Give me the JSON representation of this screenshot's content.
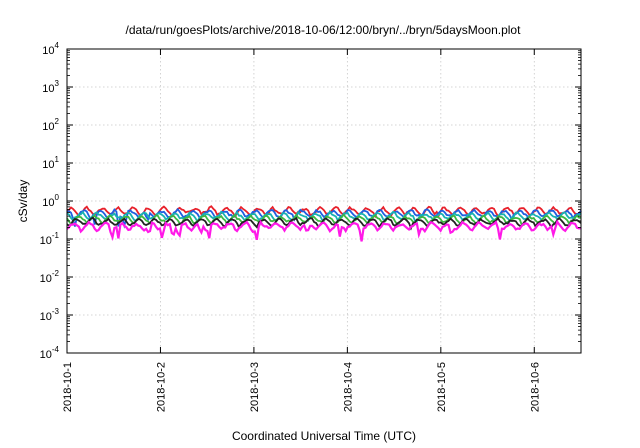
{
  "chart_data": {
    "type": "line",
    "title": "/data/run/goesPlots/archive/2018-10-06/12:00/bryn/../bryn/5daysMoon.plot",
    "xlabel": "Coordinated Universal Time (UTC)",
    "ylabel": "cSv/day",
    "yscale": "log",
    "ylim": [
      0.0001,
      10000
    ],
    "y_ticks": [
      {
        "value": 0.0001,
        "base": "10",
        "exp": "-4"
      },
      {
        "value": 0.001,
        "base": "10",
        "exp": "-3"
      },
      {
        "value": 0.01,
        "base": "10",
        "exp": "-2"
      },
      {
        "value": 0.1,
        "base": "10",
        "exp": "-1"
      },
      {
        "value": 1,
        "base": "10",
        "exp": "0"
      },
      {
        "value": 10,
        "base": "10",
        "exp": "1"
      },
      {
        "value": 100,
        "base": "10",
        "exp": "2"
      },
      {
        "value": 1000,
        "base": "10",
        "exp": "3"
      },
      {
        "value": 10000,
        "base": "10",
        "exp": "4"
      }
    ],
    "x_ticks": [
      "2018-10-1",
      "2018-10-2",
      "2018-10-3",
      "2018-10-4",
      "2018-10-5",
      "2018-10-6"
    ],
    "xlim": [
      "2018-10-01T00:00",
      "2018-10-06T12:00"
    ],
    "grid": true,
    "legend": "none",
    "series": [
      {
        "color": "#e8202a",
        "base": 0.55,
        "spikes": []
      },
      {
        "color": "#1f5fe0",
        "base": 0.47,
        "spikes": [
          0.08,
          0.3,
          0.55,
          0.62,
          0.86
        ]
      },
      {
        "color": "#18b2b2",
        "base": 0.4,
        "spikes": []
      },
      {
        "color": "#3cb840",
        "base": 0.33,
        "spikes": []
      },
      {
        "color": "#222222",
        "base": 0.28,
        "spikes": []
      },
      {
        "color": "#ff19e8",
        "base": 0.22,
        "spikes": [
          0.48,
          0.55,
          0.88,
          1.02,
          1.13,
          1.2,
          1.43,
          1.52,
          2.03,
          2.57,
          2.92,
          3.15,
          3.77,
          4.11,
          4.63,
          5.21,
          5.55
        ]
      }
    ]
  }
}
